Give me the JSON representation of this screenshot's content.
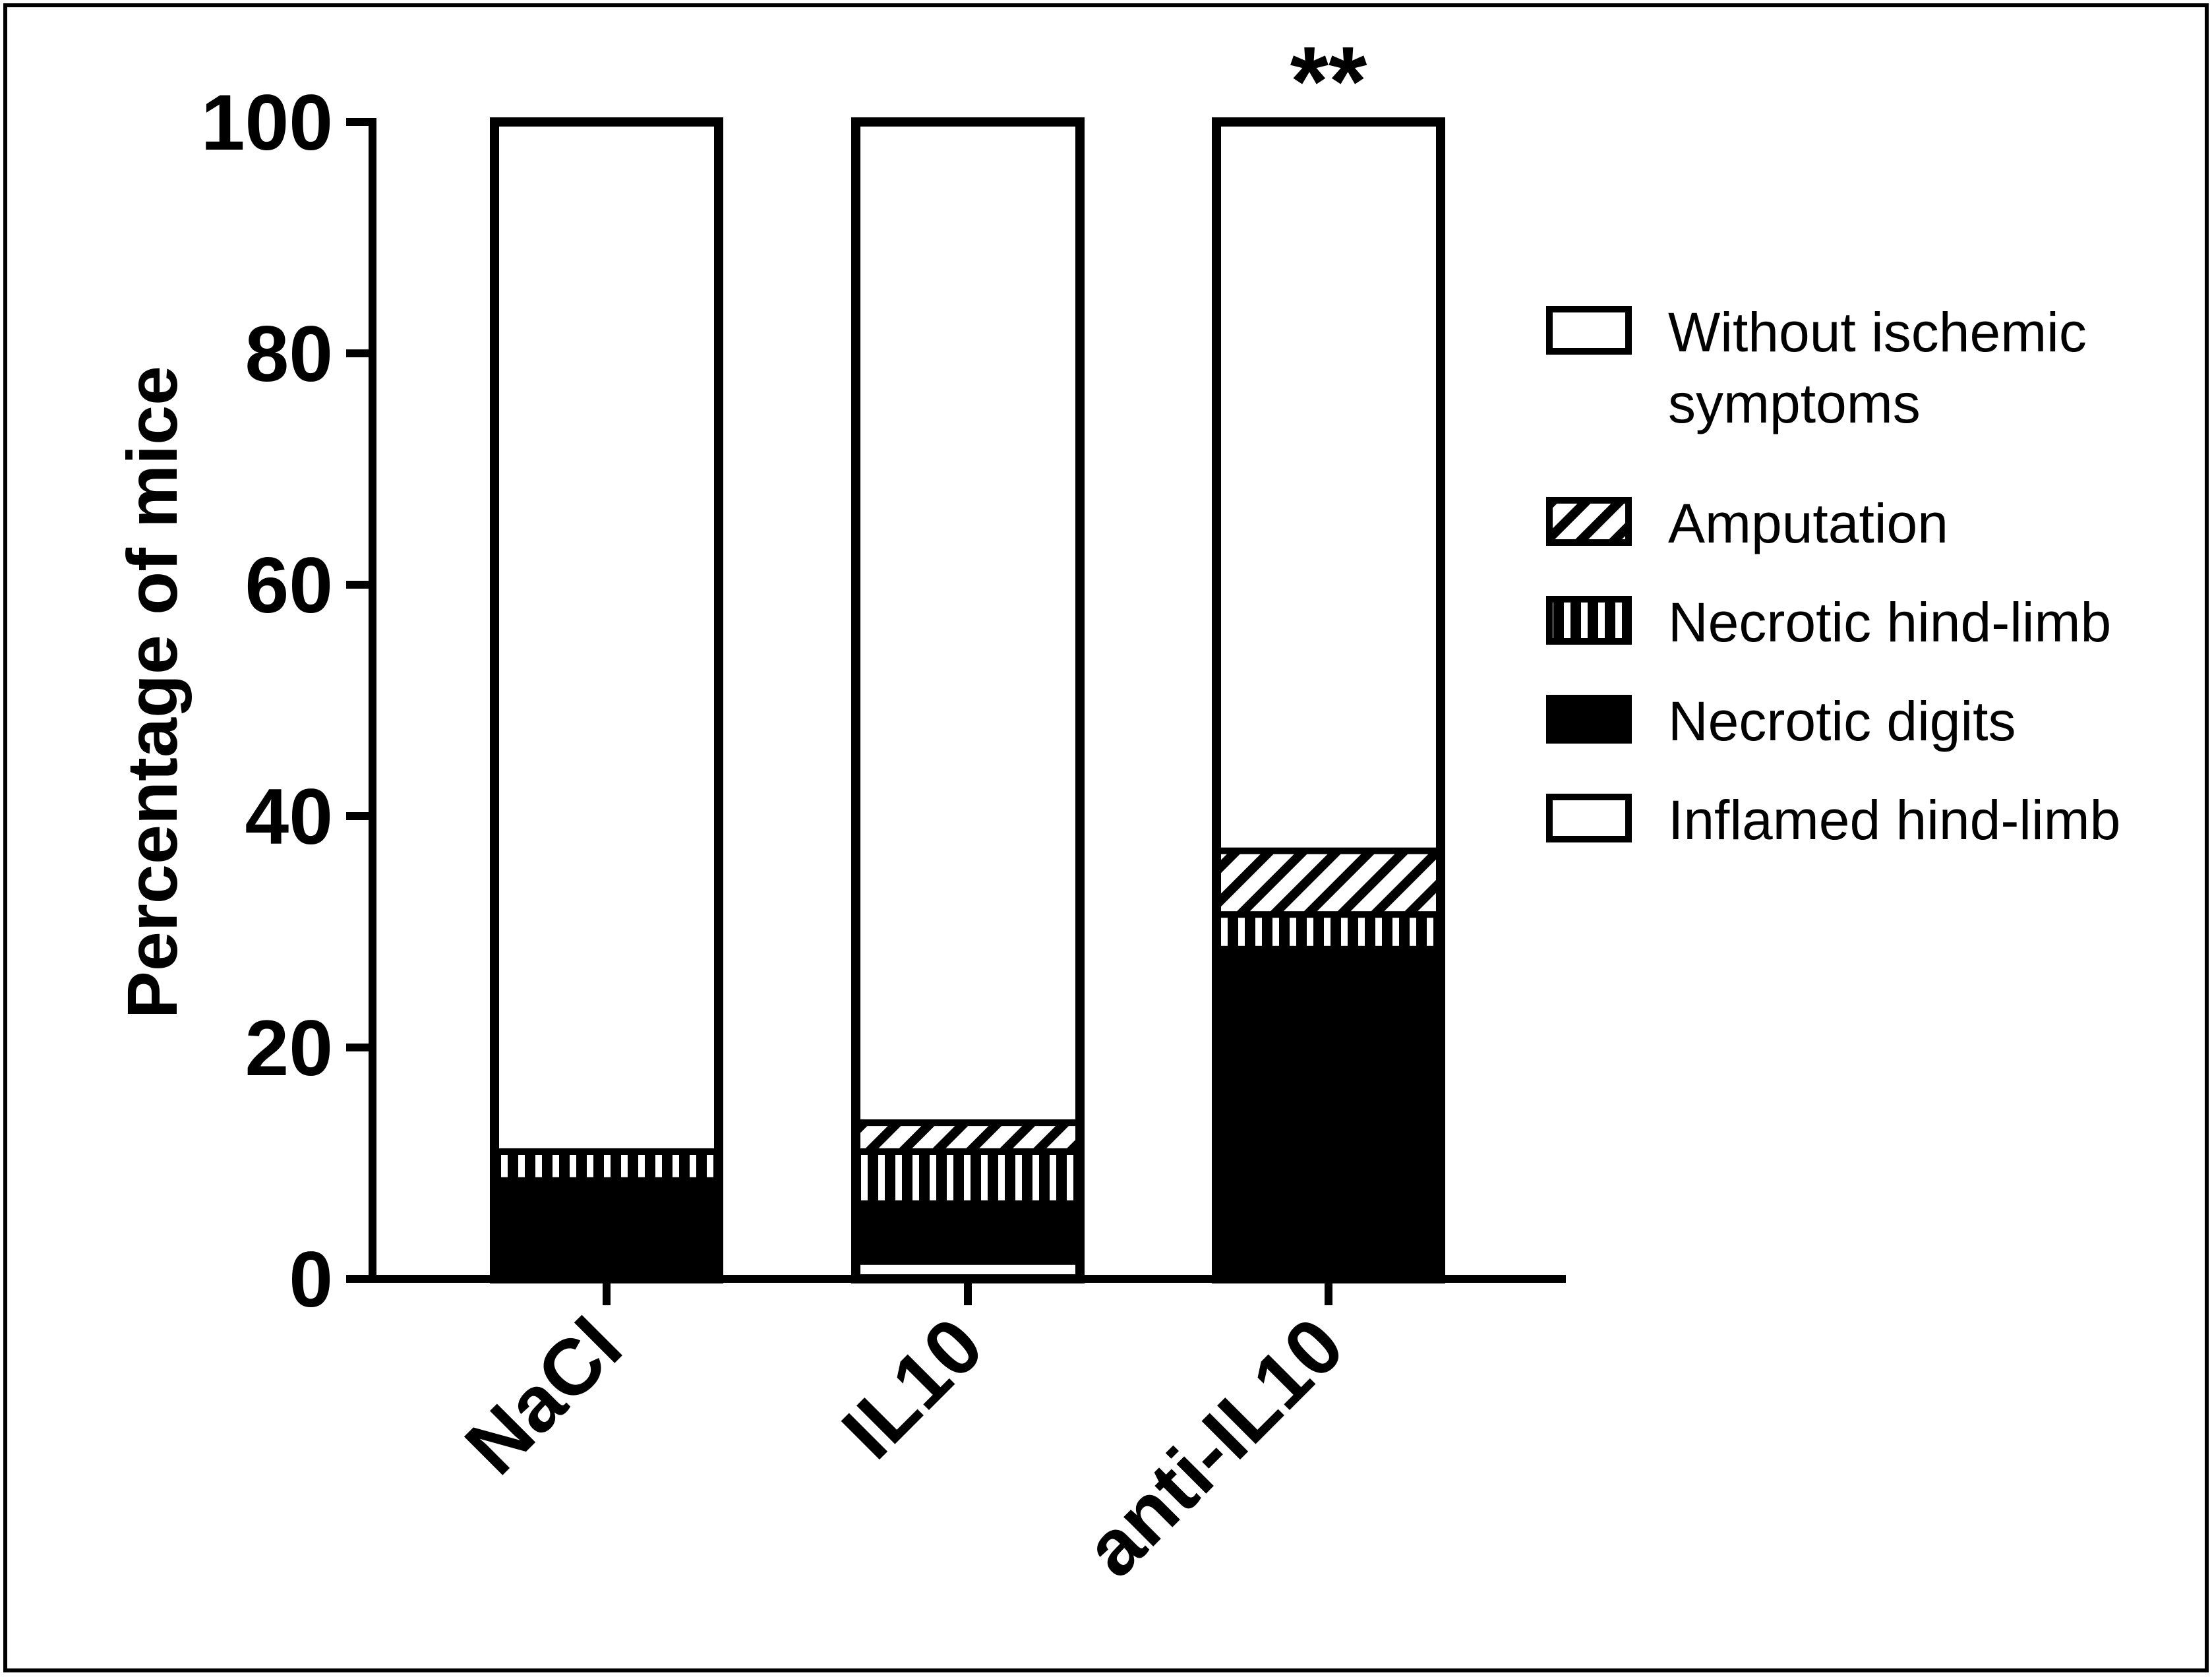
{
  "chart_data": {
    "type": "stacked-bar",
    "title": "",
    "xlabel": "",
    "ylabel": "Percentage of mice",
    "ylim": [
      0,
      100
    ],
    "yticks": [
      "0",
      "20",
      "40",
      "60",
      "80",
      "100"
    ],
    "grid": false,
    "legend_position": "right",
    "categories": [
      "NaCl",
      "IL10",
      "anti-IL10"
    ],
    "series": [
      {
        "name": "Inflamed hind-limb",
        "pattern": "white",
        "values": [
          0,
          1.5,
          0
        ]
      },
      {
        "name": "Necrotic digits",
        "pattern": "solid",
        "values": [
          8.5,
          5,
          28.5
        ]
      },
      {
        "name": "Necrotic hind-limb",
        "pattern": "vertical",
        "values": [
          2.5,
          4.5,
          3
        ]
      },
      {
        "name": "Amputation",
        "pattern": "diagonal",
        "values": [
          0,
          2.5,
          5.5
        ]
      },
      {
        "name": "Without ischemic symptoms",
        "pattern": "white",
        "values": [
          89,
          86.5,
          63
        ]
      }
    ],
    "legend": [
      {
        "label": "Without ischemic symptoms",
        "lines": [
          "Without ischemic",
          "symptoms"
        ],
        "pattern": "white"
      },
      {
        "label": "Amputation",
        "lines": [
          "Amputation"
        ],
        "pattern": "diagonal"
      },
      {
        "label": "Necrotic hind-limb",
        "lines": [
          "Necrotic hind-limb"
        ],
        "pattern": "vertical"
      },
      {
        "label": "Necrotic digits",
        "lines": [
          "Necrotic digits"
        ],
        "pattern": "solid"
      },
      {
        "label": "Inflamed hind-limb",
        "lines": [
          "Inflamed hind-limb"
        ],
        "pattern": "white"
      }
    ],
    "annotations": [
      {
        "category": "anti-IL10",
        "text": "**"
      }
    ]
  },
  "colors": {
    "ink": "#000000",
    "background": "#ffffff"
  }
}
